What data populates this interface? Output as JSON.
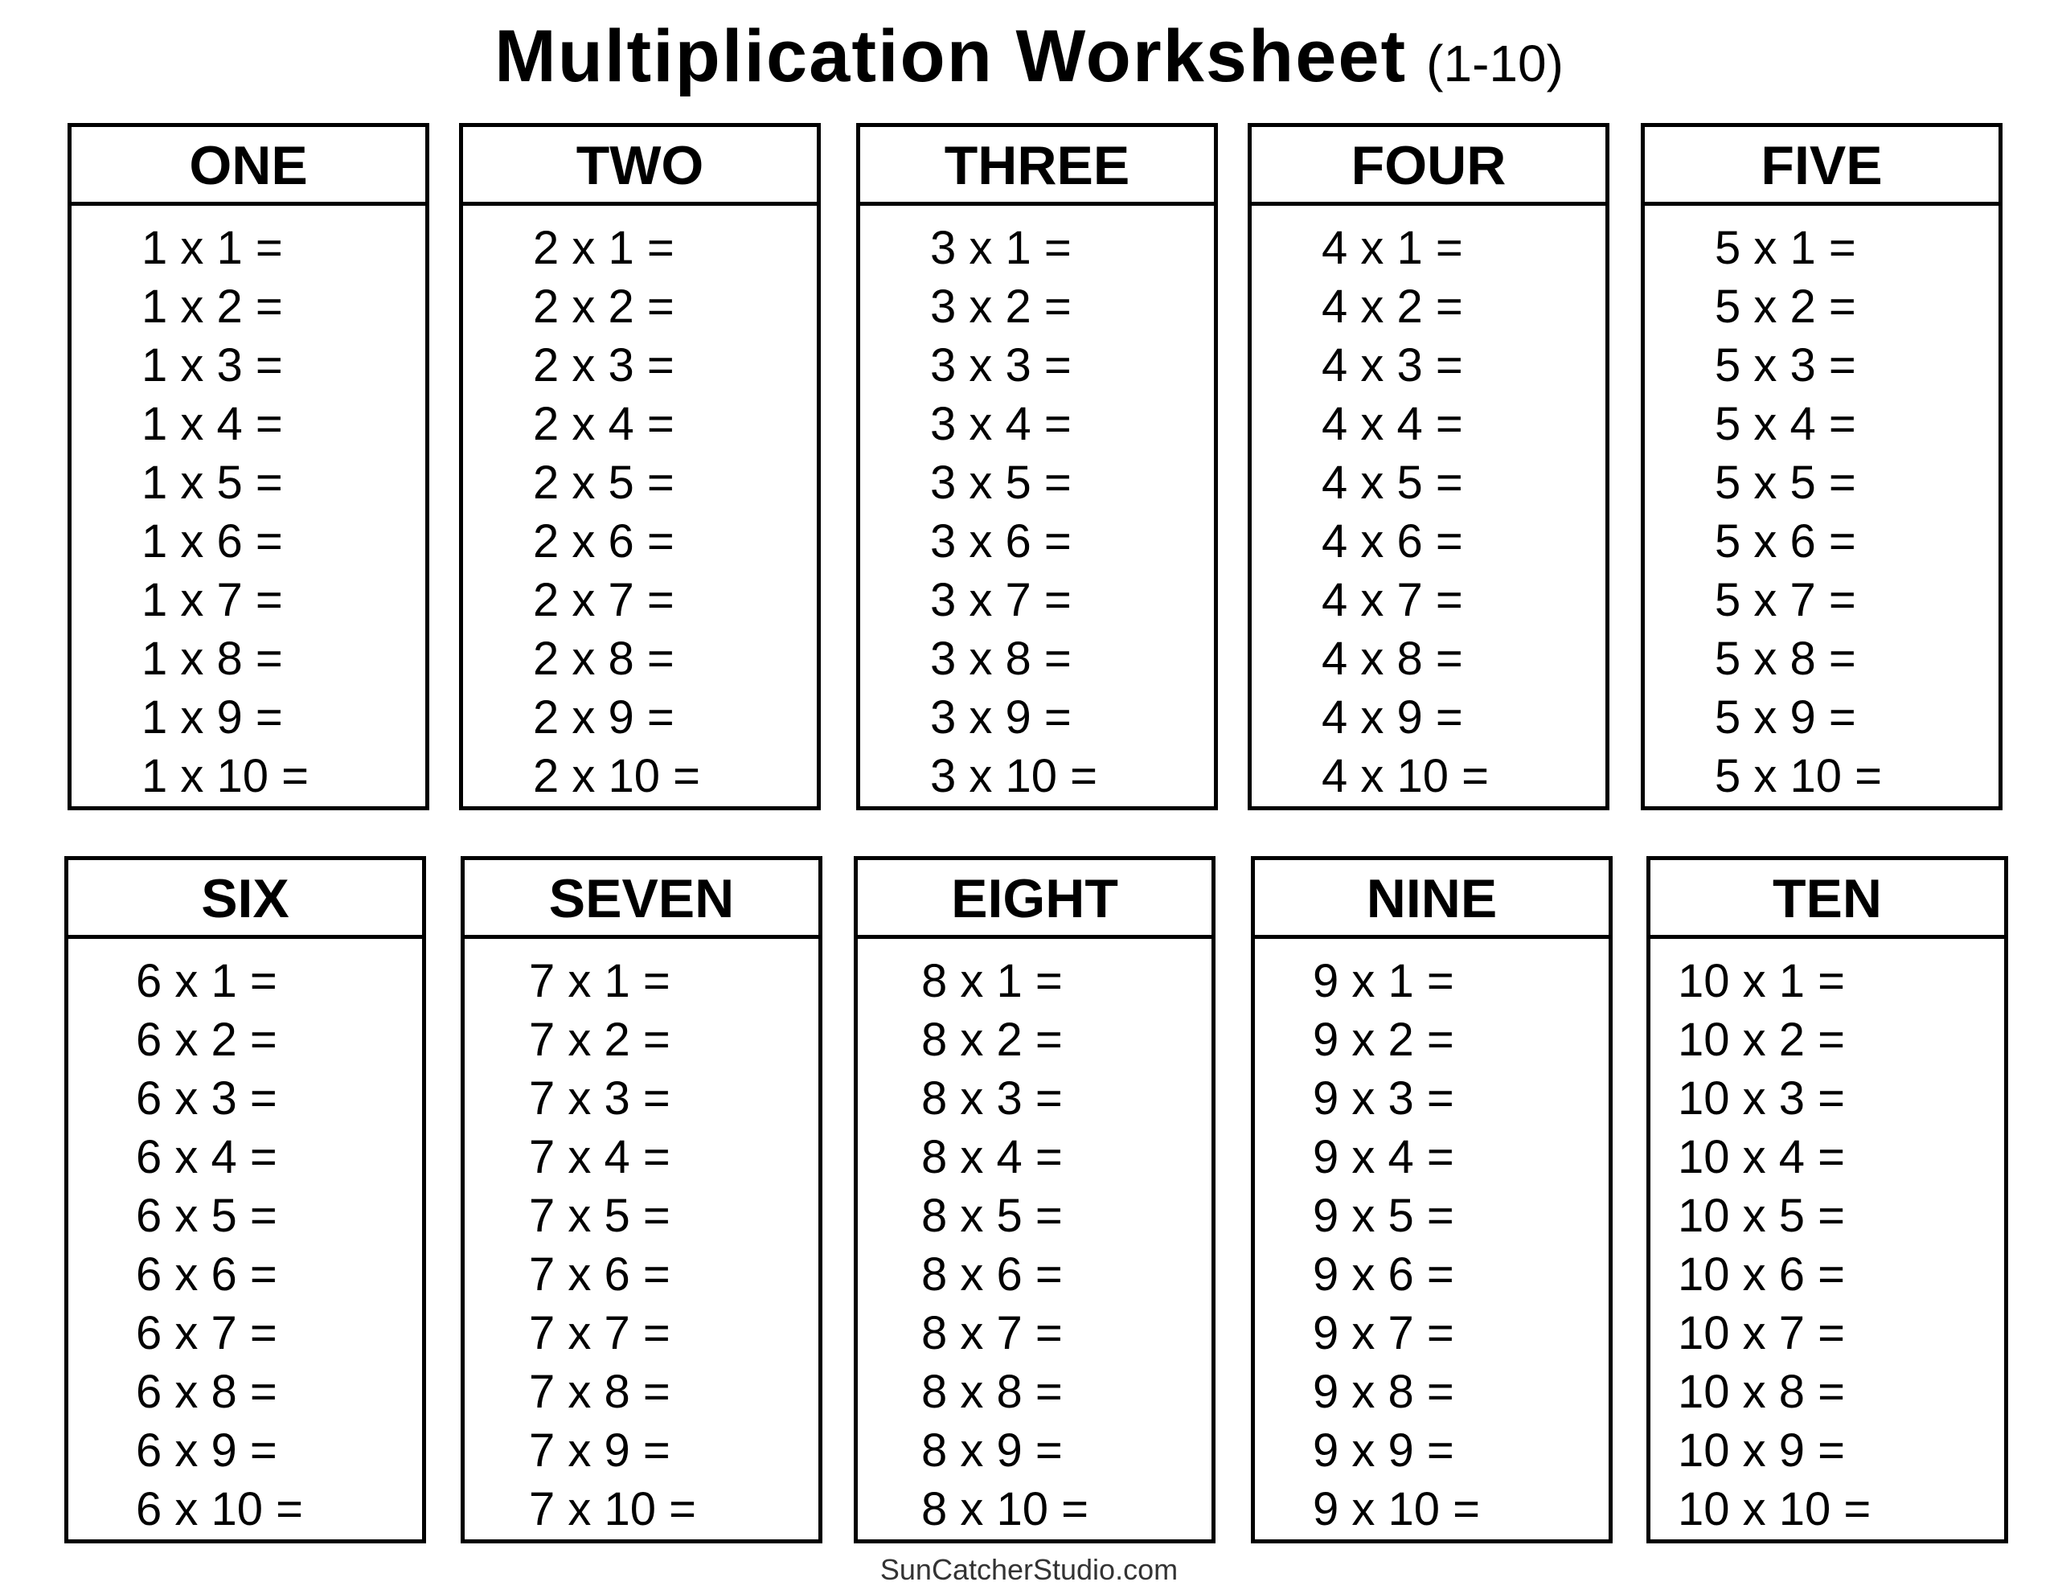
{
  "title": {
    "main": "Multiplication Worksheet",
    "sub": "(1-10)"
  },
  "tables": [
    {
      "name": "ONE",
      "problems": [
        "1 x 1 =",
        "1 x 2 =",
        "1 x 3 =",
        "1 x 4 =",
        "1 x 5 =",
        "1 x 6 =",
        "1 x 7 =",
        "1 x 8 =",
        "1 x 9 =",
        "1 x 10 ="
      ]
    },
    {
      "name": "TWO",
      "problems": [
        "2 x 1 =",
        "2 x 2 =",
        "2 x 3 =",
        "2 x 4 =",
        "2 x 5 =",
        "2 x 6 =",
        "2 x 7 =",
        "2 x 8 =",
        "2 x 9 =",
        "2 x 10 ="
      ]
    },
    {
      "name": "THREE",
      "problems": [
        "3 x 1 =",
        "3 x 2 =",
        "3 x 3 =",
        "3 x 4 =",
        "3 x 5 =",
        "3 x 6 =",
        "3 x 7 =",
        "3 x 8 =",
        "3 x 9 =",
        "3 x 10 ="
      ]
    },
    {
      "name": "FOUR",
      "problems": [
        "4 x 1 =",
        "4 x 2 =",
        "4 x 3 =",
        "4 x 4 =",
        "4 x 5 =",
        "4 x 6 =",
        "4 x 7 =",
        "4 x 8 =",
        "4 x 9 =",
        "4 x 10 ="
      ]
    },
    {
      "name": "FIVE",
      "problems": [
        "5 x 1 =",
        "5 x 2 =",
        "5 x 3 =",
        "5 x 4 =",
        "5 x 5 =",
        "5 x 6 =",
        "5 x 7 =",
        "5 x 8 =",
        "5 x 9 =",
        "5 x 10 ="
      ]
    },
    {
      "name": "SIX",
      "problems": [
        "6 x 1 =",
        "6 x 2 =",
        "6 x 3 =",
        "6 x 4 =",
        "6 x 5 =",
        "6 x 6 =",
        "6 x 7 =",
        "6 x 8 =",
        "6 x 9 =",
        "6 x 10 ="
      ]
    },
    {
      "name": "SEVEN",
      "problems": [
        "7 x 1 =",
        "7 x 2 =",
        "7 x 3 =",
        "7 x 4 =",
        "7 x 5 =",
        "7 x 6 =",
        "7 x 7 =",
        "7 x 8 =",
        "7 x 9 =",
        "7 x 10 ="
      ]
    },
    {
      "name": "EIGHT",
      "problems": [
        "8 x 1 =",
        "8 x 2 =",
        "8 x 3 =",
        "8 x 4 =",
        "8 x 5 =",
        "8 x 6 =",
        "8 x 7 =",
        "8 x 8 =",
        "8 x 9 =",
        "8 x 10 ="
      ]
    },
    {
      "name": "NINE",
      "problems": [
        "9 x 1 =",
        "9 x 2 =",
        "9 x 3 =",
        "9 x 4 =",
        "9 x 5 =",
        "9 x 6 =",
        "9 x 7 =",
        "9 x 8 =",
        "9 x 9 =",
        "9 x 10 ="
      ]
    },
    {
      "name": "TEN",
      "problems": [
        "10 x 1 =",
        "10 x 2 =",
        "10 x 3 =",
        "10 x 4 =",
        "10 x 5 =",
        "10 x 6 =",
        "10 x 7 =",
        "10 x 8 =",
        "10 x 9 =",
        "10 x 10 ="
      ]
    }
  ],
  "footer": "SunCatcherStudio.com"
}
